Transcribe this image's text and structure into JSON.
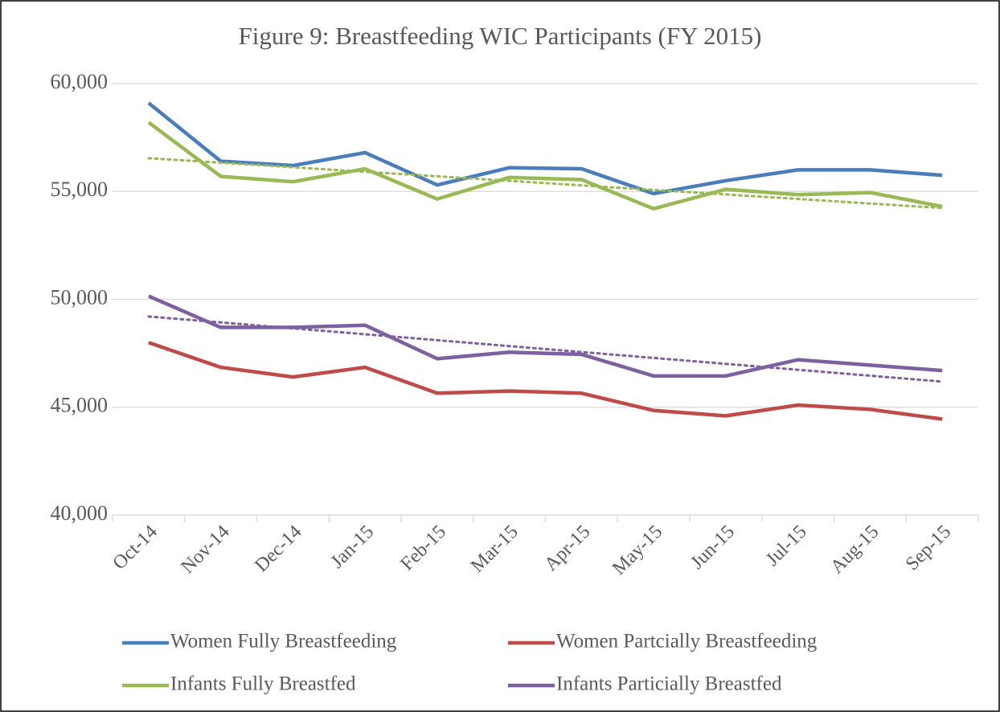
{
  "chart_data": {
    "type": "line",
    "title": "Figure 9: Breastfeeding WIC Participants (FY 2015)",
    "categories": [
      "Oct-14",
      "Nov-14",
      "Dec-14",
      "Jan-15",
      "Feb-15",
      "Mar-15",
      "Apr-15",
      "May-15",
      "Jun-15",
      "Jul-15",
      "Aug-15",
      "Sep-15"
    ],
    "series": [
      {
        "name": "Women Fully Breastfeeding",
        "color": "#4a7ebb",
        "values": [
          59100,
          56400,
          56200,
          56800,
          55300,
          56100,
          56050,
          54900,
          55500,
          56000,
          56000,
          55750
        ]
      },
      {
        "name": "Women Partcially Breastfeeding",
        "color": "#be4b48",
        "values": [
          48000,
          46850,
          46400,
          46850,
          45650,
          45750,
          45650,
          44850,
          44600,
          45100,
          44900,
          44450
        ]
      },
      {
        "name": "Infants Fully Breastfed",
        "color": "#98b954",
        "values": [
          58200,
          55700,
          55450,
          56050,
          54650,
          55650,
          55550,
          54200,
          55100,
          54850,
          54950,
          54300
        ],
        "trendline": true
      },
      {
        "name": "Infants Particially Breastfed",
        "color": "#7d60a0",
        "values": [
          50150,
          48700,
          48700,
          48800,
          47250,
          47550,
          47450,
          46450,
          46450,
          47200,
          46950,
          46700
        ],
        "trendline": true
      }
    ],
    "ylim": [
      40000,
      60000
    ],
    "yticks": [
      {
        "value": 40000,
        "label": "40,000"
      },
      {
        "value": 45000,
        "label": "45,000"
      },
      {
        "value": 50000,
        "label": "50,000"
      },
      {
        "value": 55000,
        "label": "55,000"
      },
      {
        "value": 60000,
        "label": "60,000"
      }
    ],
    "grid": true,
    "legend": "bottom"
  }
}
